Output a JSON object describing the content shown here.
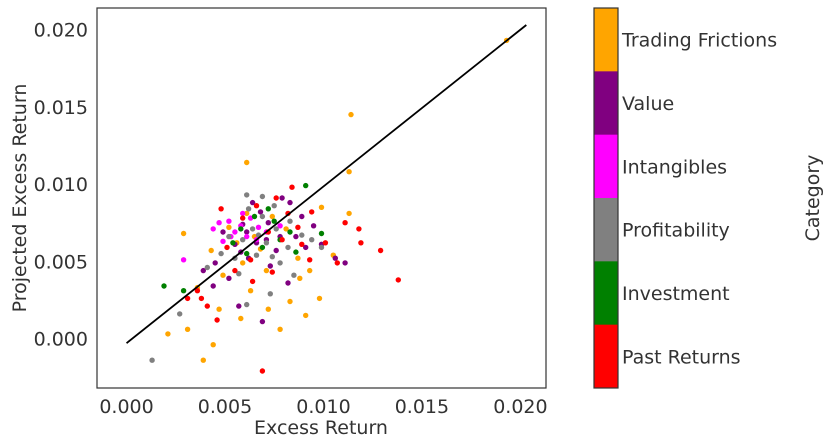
{
  "chart_data": {
    "type": "scatter",
    "title": "",
    "xlabel": "Excess Return",
    "ylabel": "Projected Excess Return",
    "xlim": [
      -0.0015,
      0.0213
    ],
    "ylim": [
      -0.0032,
      0.0214
    ],
    "x_ticks": [
      "0.000",
      "0.005",
      "0.010",
      "0.015",
      "0.020"
    ],
    "x_tick_values": [
      0.0,
      0.005,
      0.01,
      0.015,
      0.02
    ],
    "y_ticks": [
      "0.000",
      "0.005",
      "0.010",
      "0.015",
      "0.020"
    ],
    "y_tick_values": [
      0.0,
      0.005,
      0.01,
      0.015,
      0.02
    ],
    "grid": false,
    "reference_line": {
      "x": [
        0.0,
        0.0203
      ],
      "y": [
        -0.0003,
        0.0203
      ],
      "color": "#000000"
    },
    "colorbar": {
      "title": "Category",
      "categories": [
        "Trading Frictions",
        "Value",
        "Intangibles",
        "Profitability",
        "Investment",
        "Past Returns"
      ],
      "colors": [
        "#ffa500",
        "#800080",
        "#ff00ff",
        "#808080",
        "#008000",
        "#ff0000"
      ]
    },
    "series": [
      {
        "category": "Trading Frictions",
        "color": "#ffa500",
        "points": [
          [
            0.0193,
            0.0193
          ],
          [
            0.0114,
            0.0145
          ],
          [
            0.0061,
            0.0114
          ],
          [
            0.0113,
            0.0108
          ],
          [
            0.0029,
            0.0068
          ],
          [
            0.0043,
            0.0057
          ],
          [
            0.0059,
            0.0049
          ],
          [
            0.0063,
            0.0031
          ],
          [
            0.0071,
            0.0044
          ],
          [
            0.0088,
            0.0039
          ],
          [
            0.0098,
            0.0026
          ],
          [
            0.0105,
            0.0054
          ],
          [
            0.0113,
            0.0081
          ],
          [
            0.0047,
            0.0019
          ],
          [
            0.0031,
            0.0006
          ],
          [
            0.0021,
            0.0003
          ],
          [
            0.0044,
            -0.0004
          ],
          [
            0.0039,
            -0.0014
          ],
          [
            0.0058,
            0.0013
          ],
          [
            0.0078,
            0.0006
          ],
          [
            0.0083,
            0.0024
          ],
          [
            0.0091,
            0.0015
          ],
          [
            0.0052,
            0.0072
          ],
          [
            0.0065,
            0.0066
          ],
          [
            0.0074,
            0.0079
          ],
          [
            0.0068,
            0.0058
          ],
          [
            0.0056,
            0.0062
          ],
          [
            0.0081,
            0.0071
          ],
          [
            0.0099,
            0.0085
          ],
          [
            0.0049,
            0.0041
          ],
          [
            0.0036,
            0.0033
          ],
          [
            0.0072,
            0.0019
          ],
          [
            0.0087,
            0.0052
          ],
          [
            0.0093,
            0.0044
          ],
          [
            0.0061,
            0.0081
          ]
        ]
      },
      {
        "category": "Value",
        "color": "#800080",
        "points": [
          [
            0.0068,
            0.0082
          ],
          [
            0.0072,
            0.0075
          ],
          [
            0.0061,
            0.0069
          ],
          [
            0.0078,
            0.0066
          ],
          [
            0.0055,
            0.0061
          ],
          [
            0.0089,
            0.0079
          ],
          [
            0.0083,
            0.0088
          ],
          [
            0.0064,
            0.0088
          ],
          [
            0.0099,
            0.0061
          ],
          [
            0.0106,
            0.0052
          ],
          [
            0.0045,
            0.0049
          ],
          [
            0.0039,
            0.0044
          ],
          [
            0.0052,
            0.0039
          ],
          [
            0.0073,
            0.0047
          ],
          [
            0.0069,
            0.0011
          ],
          [
            0.0057,
            0.0021
          ],
          [
            0.0082,
            0.0036
          ],
          [
            0.0091,
            0.0059
          ],
          [
            0.0066,
            0.0062
          ],
          [
            0.0076,
            0.0057
          ],
          [
            0.0059,
            0.0074
          ],
          [
            0.0086,
            0.0066
          ],
          [
            0.0049,
            0.0069
          ],
          [
            0.0079,
            0.0091
          ],
          [
            0.0111,
            0.0049
          ],
          [
            0.0062,
            0.0052
          ],
          [
            0.0071,
            0.0064
          ],
          [
            0.0095,
            0.0073
          ],
          [
            0.0044,
            0.0034
          ],
          [
            0.0058,
            0.0056
          ]
        ]
      },
      {
        "category": "Intangibles",
        "color": "#ff00ff",
        "points": [
          [
            0.0047,
            0.0075
          ],
          [
            0.0052,
            0.0076
          ],
          [
            0.0058,
            0.0073
          ],
          [
            0.0061,
            0.0066
          ],
          [
            0.0055,
            0.0069
          ],
          [
            0.0063,
            0.0078
          ],
          [
            0.0049,
            0.0063
          ],
          [
            0.0067,
            0.0072
          ],
          [
            0.0029,
            0.0051
          ],
          [
            0.0044,
            0.0071
          ],
          [
            0.0059,
            0.0081
          ],
          [
            0.0066,
            0.0064
          ],
          [
            0.0071,
            0.0069
          ],
          [
            0.0053,
            0.0066
          ],
          [
            0.0078,
            0.0073
          ]
        ]
      },
      {
        "category": "Profitability",
        "color": "#808080",
        "points": [
          [
            0.0013,
            -0.0014
          ],
          [
            0.0027,
            0.0016
          ],
          [
            0.0061,
            0.0093
          ],
          [
            0.0069,
            0.0092
          ],
          [
            0.0075,
            0.0086
          ],
          [
            0.0064,
            0.0071
          ],
          [
            0.0071,
            0.0062
          ],
          [
            0.0059,
            0.0064
          ],
          [
            0.0082,
            0.0059
          ],
          [
            0.0055,
            0.0052
          ],
          [
            0.0048,
            0.0055
          ],
          [
            0.0066,
            0.0054
          ],
          [
            0.0078,
            0.0049
          ],
          [
            0.0089,
            0.0067
          ],
          [
            0.0099,
            0.0059
          ],
          [
            0.0061,
            0.0022
          ],
          [
            0.0073,
            0.0029
          ],
          [
            0.0085,
            0.0041
          ],
          [
            0.0041,
            0.0046
          ],
          [
            0.0057,
            0.0042
          ],
          [
            0.0069,
            0.0079
          ],
          [
            0.0076,
            0.0071
          ],
          [
            0.0062,
            0.0084
          ],
          [
            0.0094,
            0.0064
          ],
          [
            0.0052,
            0.0066
          ],
          [
            0.0083,
            0.0076
          ],
          [
            0.0067,
            0.0067
          ],
          [
            0.0074,
            0.0053
          ]
        ]
      },
      {
        "category": "Investment",
        "color": "#008000",
        "points": [
          [
            0.0091,
            0.0099
          ],
          [
            0.0072,
            0.0084
          ],
          [
            0.0065,
            0.0079
          ],
          [
            0.0058,
            0.0071
          ],
          [
            0.0019,
            0.0034
          ],
          [
            0.0029,
            0.0031
          ],
          [
            0.0078,
            0.0064
          ],
          [
            0.0083,
            0.0069
          ],
          [
            0.0069,
            0.0059
          ],
          [
            0.0099,
            0.0068
          ],
          [
            0.0061,
            0.0055
          ],
          [
            0.0075,
            0.0076
          ],
          [
            0.0054,
            0.0062
          ],
          [
            0.0086,
            0.0056
          ]
        ]
      },
      {
        "category": "Past Returns",
        "color": "#ff0000",
        "points": [
          [
            0.0138,
            0.0038
          ],
          [
            0.0129,
            0.0057
          ],
          [
            0.0119,
            0.0062
          ],
          [
            0.0118,
            0.0071
          ],
          [
            0.0111,
            0.0075
          ],
          [
            0.0101,
            0.0062
          ],
          [
            0.0094,
            0.0082
          ],
          [
            0.0089,
            0.0061
          ],
          [
            0.0082,
            0.0081
          ],
          [
            0.0076,
            0.0091
          ],
          [
            0.0069,
            -0.0021
          ],
          [
            0.0046,
            0.0012
          ],
          [
            0.0041,
            0.0021
          ],
          [
            0.0036,
            0.0031
          ],
          [
            0.0031,
            0.0026
          ],
          [
            0.0055,
            0.0044
          ],
          [
            0.0063,
            0.0051
          ],
          [
            0.0072,
            0.0069
          ],
          [
            0.0079,
            0.0064
          ],
          [
            0.0087,
            0.0072
          ],
          [
            0.0066,
            0.0086
          ],
          [
            0.0051,
            0.0059
          ],
          [
            0.0059,
            0.0078
          ],
          [
            0.0093,
            0.0051
          ],
          [
            0.0107,
            0.0049
          ],
          [
            0.0048,
            0.0084
          ],
          [
            0.0074,
            0.0043
          ],
          [
            0.0084,
            0.0098
          ],
          [
            0.0038,
            0.0026
          ],
          [
            0.0064,
            0.0037
          ]
        ]
      }
    ]
  }
}
